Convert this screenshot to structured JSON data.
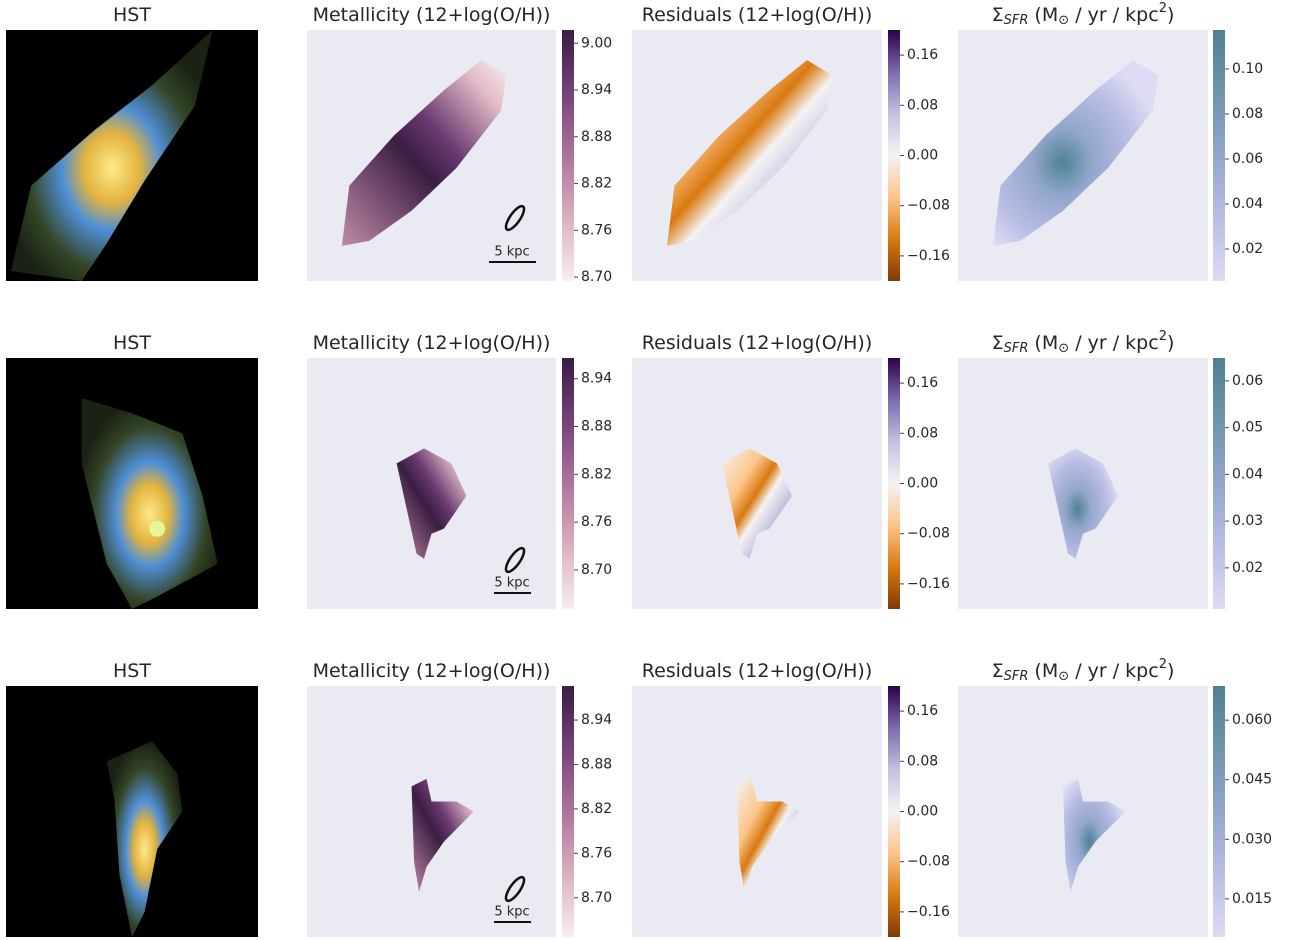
{
  "chart_data": [
    {
      "type": "image",
      "title": [
        "HST"
      ],
      "title_format": [
        "normal"
      ]
    },
    {
      "type": "heatmap",
      "title": [
        "Metallicity (12+log(O/H))"
      ],
      "title_format": [
        "normal"
      ],
      "clim": [
        8.695,
        9.017
      ],
      "cticks": [
        {
          "value": 8.7,
          "label": "8.70"
        },
        8.76,
        8.82,
        8.88,
        8.94,
        {
          "value": 9,
          "label": "9.00"
        }
      ],
      "colormap": [
        "#f6eeee",
        "#e2bcc8",
        "#c28aa8",
        "#985f8f",
        "#6a3a70",
        "#3a1d43"
      ],
      "scale_bar": "5 kpc"
    },
    {
      "type": "heatmap",
      "title": [
        "Residuals (12+log(O/H))"
      ],
      "title_format": [
        "normal"
      ],
      "clim": [
        -0.2,
        0.2
      ],
      "cticks": [
        {
          "value": -0.16,
          "label": "−0.16"
        },
        {
          "value": -0.08,
          "label": "−0.08"
        },
        {
          "value": 0,
          "label": "0.00"
        },
        0.08,
        0.16
      ],
      "colormap": [
        "#7f3b08",
        "#d9790f",
        "#fdc58a",
        "#f4f2f3",
        "#c5c1e0",
        "#7c6aae",
        "#2d004b"
      ]
    },
    {
      "type": "heatmap",
      "title": [
        "Σ",
        "SFR",
        " (M",
        "⊙",
        " / yr / kpc",
        "2",
        ")"
      ],
      "title_format": [
        "normal",
        "sub",
        "normal",
        "sub",
        "normal",
        "sup",
        "normal"
      ],
      "clim": [
        0.0058,
        0.1173
      ],
      "cticks": [
        0.02,
        0.04,
        0.06,
        0.08,
        {
          "value": 0.1,
          "label": "0.10"
        }
      ],
      "colormap": [
        "#dddcf4",
        "#b9bde4",
        "#92a6cc",
        "#6f94ae",
        "#4e8293"
      ]
    },
    {
      "type": "image",
      "title": [
        "HST"
      ],
      "title_format": [
        "normal"
      ]
    },
    {
      "type": "heatmap",
      "title": [
        "Metallicity (12+log(O/H))"
      ],
      "title_format": [
        "normal"
      ],
      "clim": [
        8.651,
        8.966
      ],
      "cticks": [
        {
          "value": 8.7,
          "label": "8.70"
        },
        8.76,
        8.82,
        8.88,
        8.94
      ],
      "colormap": [
        "#f6eeee",
        "#e2bcc8",
        "#c28aa8",
        "#985f8f",
        "#6a3a70",
        "#3a1d43"
      ],
      "scale_bar": "5 kpc"
    },
    {
      "type": "heatmap",
      "title": [
        "Residuals (12+log(O/H))"
      ],
      "title_format": [
        "normal"
      ],
      "clim": [
        -0.2,
        0.2
      ],
      "cticks": [
        {
          "value": -0.16,
          "label": "−0.16"
        },
        {
          "value": -0.08,
          "label": "−0.08"
        },
        {
          "value": 0,
          "label": "0.00"
        },
        0.08,
        0.16
      ],
      "colormap": [
        "#7f3b08",
        "#d9790f",
        "#fdc58a",
        "#f4f2f3",
        "#c5c1e0",
        "#7c6aae",
        "#2d004b"
      ]
    },
    {
      "type": "heatmap",
      "title": [
        "Σ",
        "SFR",
        " (M",
        "⊙",
        " / yr / kpc",
        "2",
        ")"
      ],
      "title_format": [
        "normal",
        "sub",
        "normal",
        "sub",
        "normal",
        "sup",
        "normal"
      ],
      "clim": [
        0.0112,
        0.0649
      ],
      "cticks": [
        0.02,
        0.03,
        0.04,
        0.05,
        0.06
      ],
      "colormap": [
        "#dddcf4",
        "#b9bde4",
        "#92a6cc",
        "#6f94ae",
        "#4e8293"
      ]
    },
    {
      "type": "image",
      "title": [
        "HST"
      ],
      "title_format": [
        "normal"
      ]
    },
    {
      "type": "heatmap",
      "title": [
        "Metallicity (12+log(O/H))"
      ],
      "title_format": [
        "normal"
      ],
      "clim": [
        8.647,
        8.986
      ],
      "cticks": [
        {
          "value": 8.7,
          "label": "8.70"
        },
        8.76,
        8.82,
        8.88,
        8.94
      ],
      "colormap": [
        "#f6eeee",
        "#e2bcc8",
        "#c28aa8",
        "#985f8f",
        "#6a3a70",
        "#3a1d43"
      ],
      "scale_bar": "5 kpc"
    },
    {
      "type": "heatmap",
      "title": [
        "Residuals (12+log(O/H))"
      ],
      "title_format": [
        "normal"
      ],
      "clim": [
        -0.2,
        0.2
      ],
      "cticks": [
        {
          "value": -0.16,
          "label": "−0.16"
        },
        {
          "value": -0.08,
          "label": "−0.08"
        },
        {
          "value": 0,
          "label": "0.00"
        },
        0.08,
        0.16
      ],
      "colormap": [
        "#7f3b08",
        "#d9790f",
        "#fdc58a",
        "#f4f2f3",
        "#c5c1e0",
        "#7c6aae",
        "#2d004b"
      ]
    },
    {
      "type": "heatmap",
      "title": [
        "Σ",
        "SFR",
        " (M",
        "⊙",
        " / yr / kpc",
        "2",
        ")"
      ],
      "title_format": [
        "normal",
        "sub",
        "normal",
        "sub",
        "normal",
        "sup",
        "normal"
      ],
      "clim": [
        0.0054,
        0.0686
      ],
      "cticks": [
        0.015,
        {
          "value": 0.03,
          "label": "0.030"
        },
        0.045,
        {
          "value": 0.06,
          "label": "0.060"
        }
      ],
      "colormap": [
        "#dddcf4",
        "#b9bde4",
        "#92a6cc",
        "#6f94ae",
        "#4e8293"
      ]
    }
  ]
}
